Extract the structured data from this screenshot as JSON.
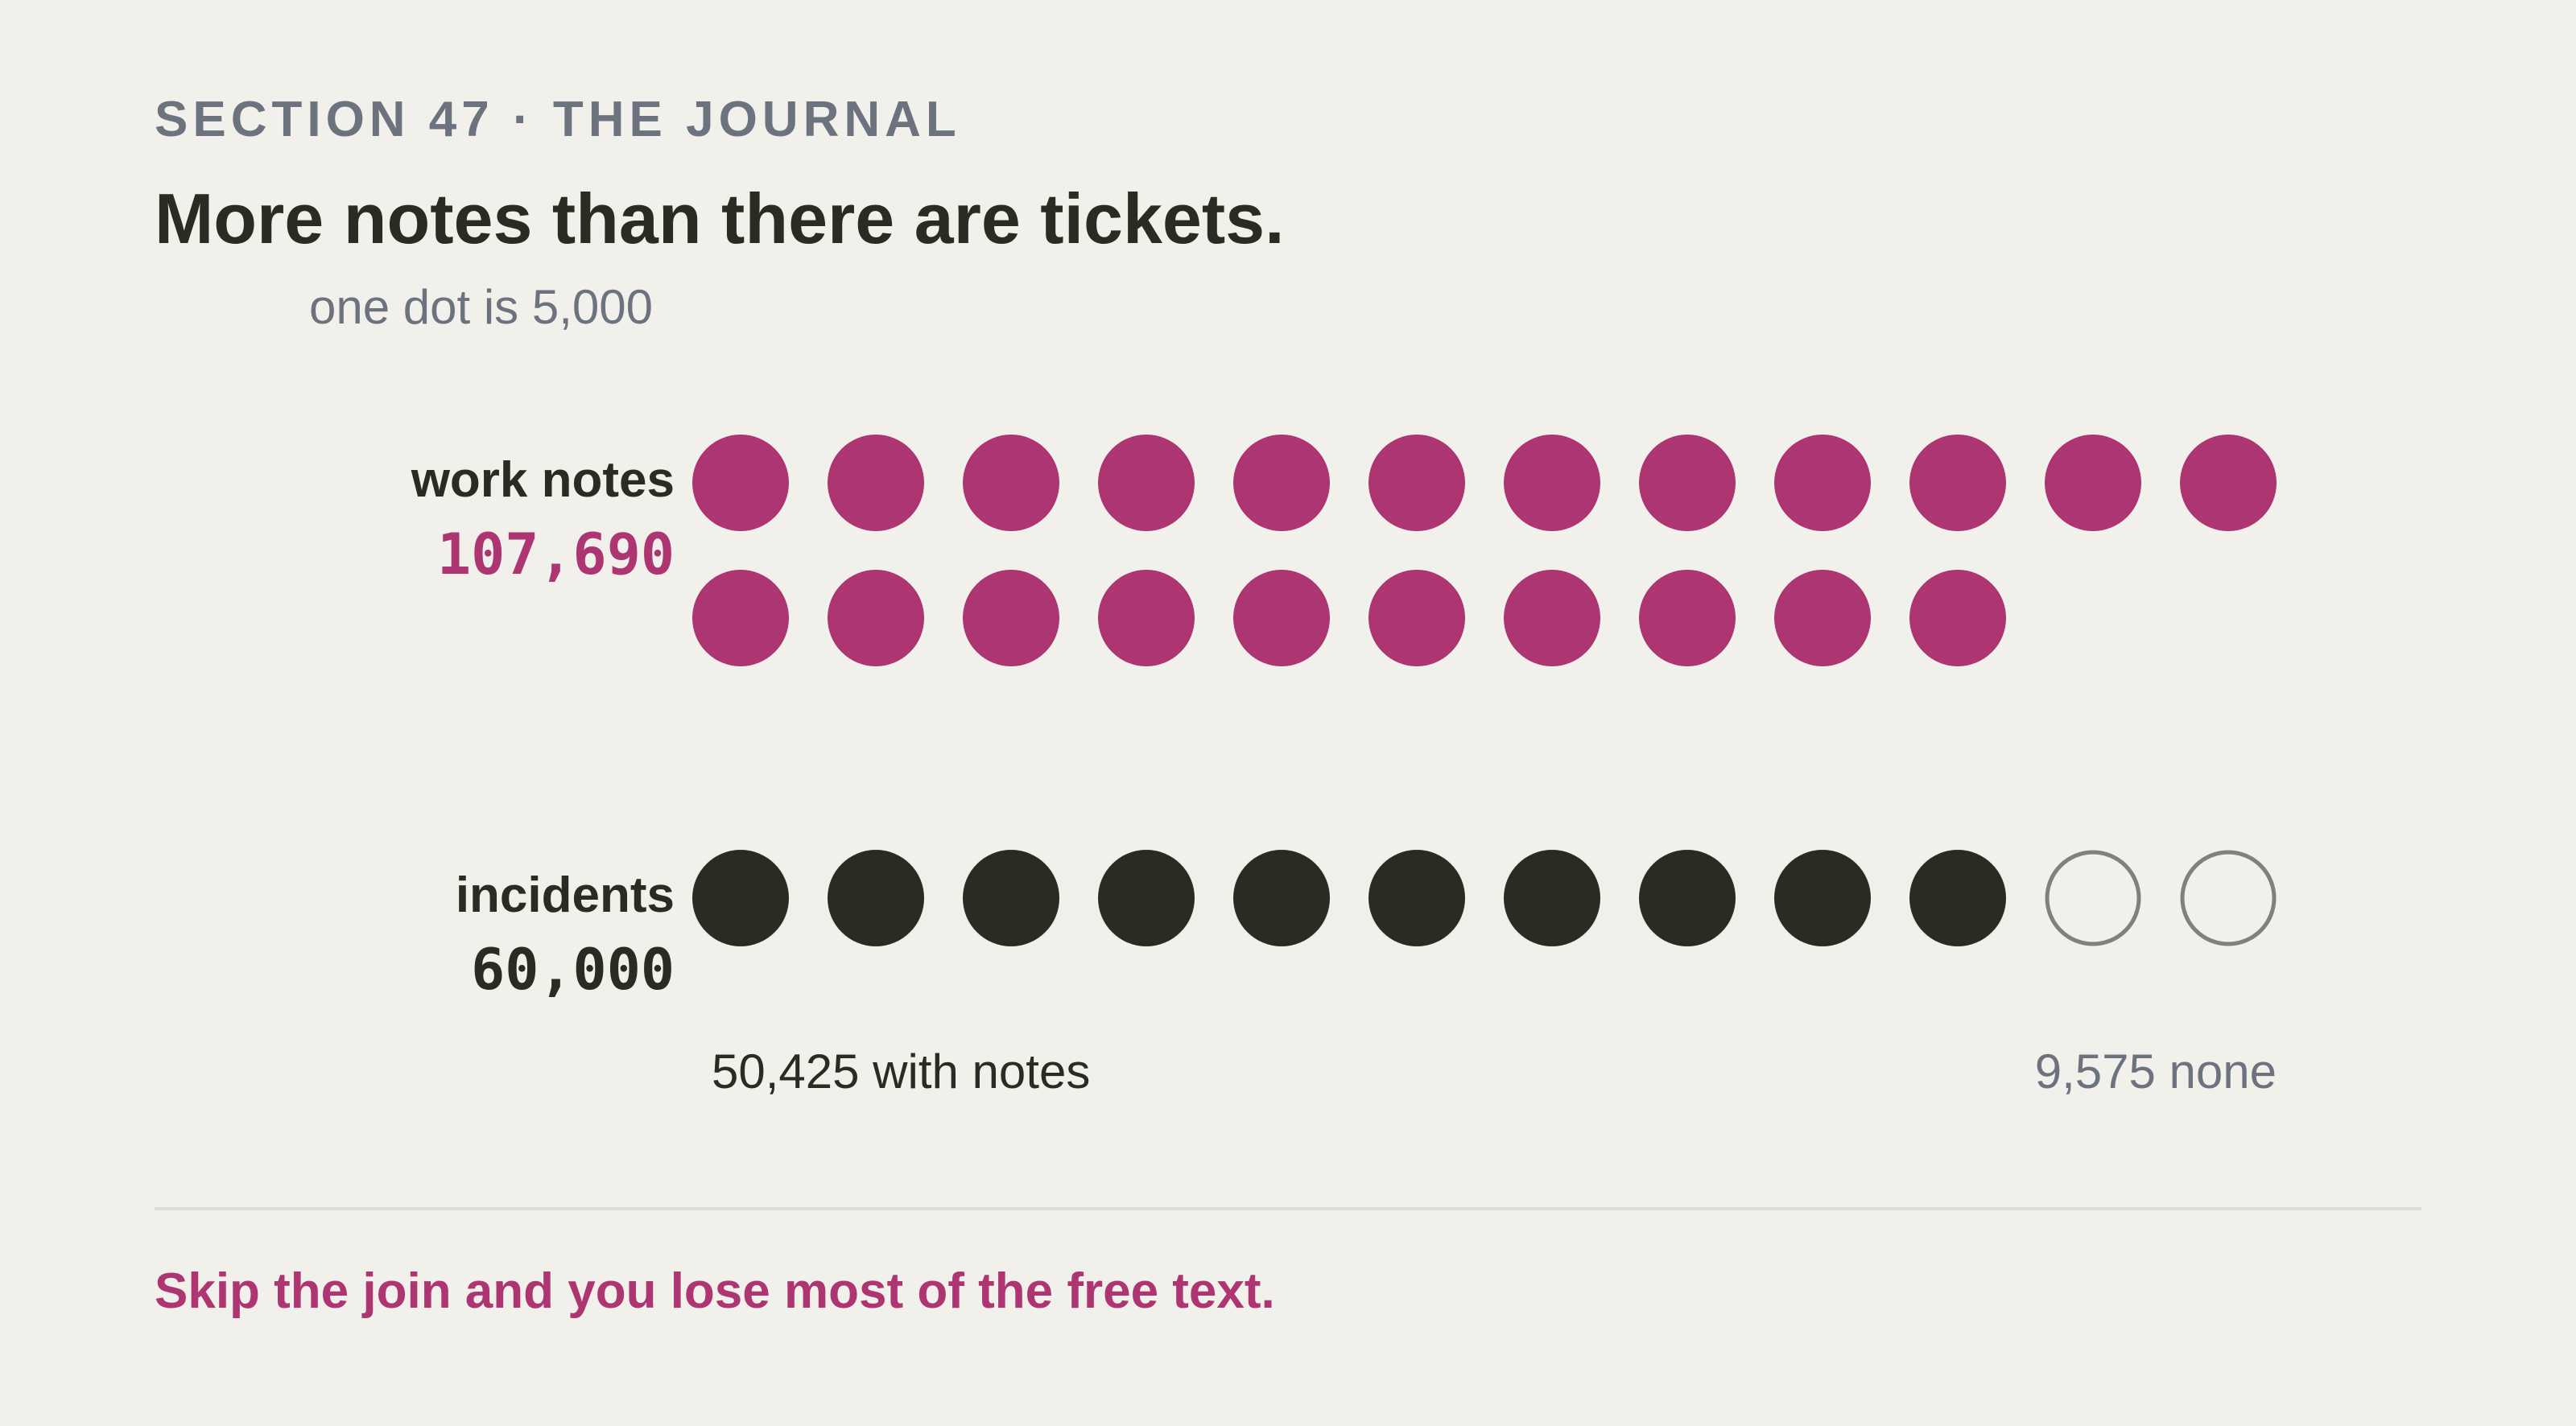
{
  "header": {
    "eyebrow": "SECTION 47 · THE JOURNAL",
    "title": "More notes than there are tickets."
  },
  "chart_data": {
    "type": "unit",
    "title": "More notes than there are tickets.",
    "unit_label": "one dot is 5,000",
    "unit_value": 5000,
    "colors": {
      "notes": "#ac3572",
      "incidents": "#2b2a23",
      "empty_stroke": "#808080",
      "muted": "#6d737e"
    },
    "rows": [
      {
        "label": "work notes",
        "value": 107690,
        "value_text": "107,690",
        "color": "#ac3572",
        "filled_dots": 22,
        "empty_dots": 0
      },
      {
        "label": "incidents",
        "value": 60000,
        "value_text": "60,000",
        "color": "#2b2a23",
        "filled_dots": 10,
        "empty_dots": 2,
        "split": {
          "with_notes": 50425,
          "with_notes_label": "50,425 with notes",
          "none": 9575,
          "none_label": "9,575 none"
        }
      }
    ]
  },
  "footer": {
    "takeaway": "Skip the join and you lose most of the free text."
  }
}
